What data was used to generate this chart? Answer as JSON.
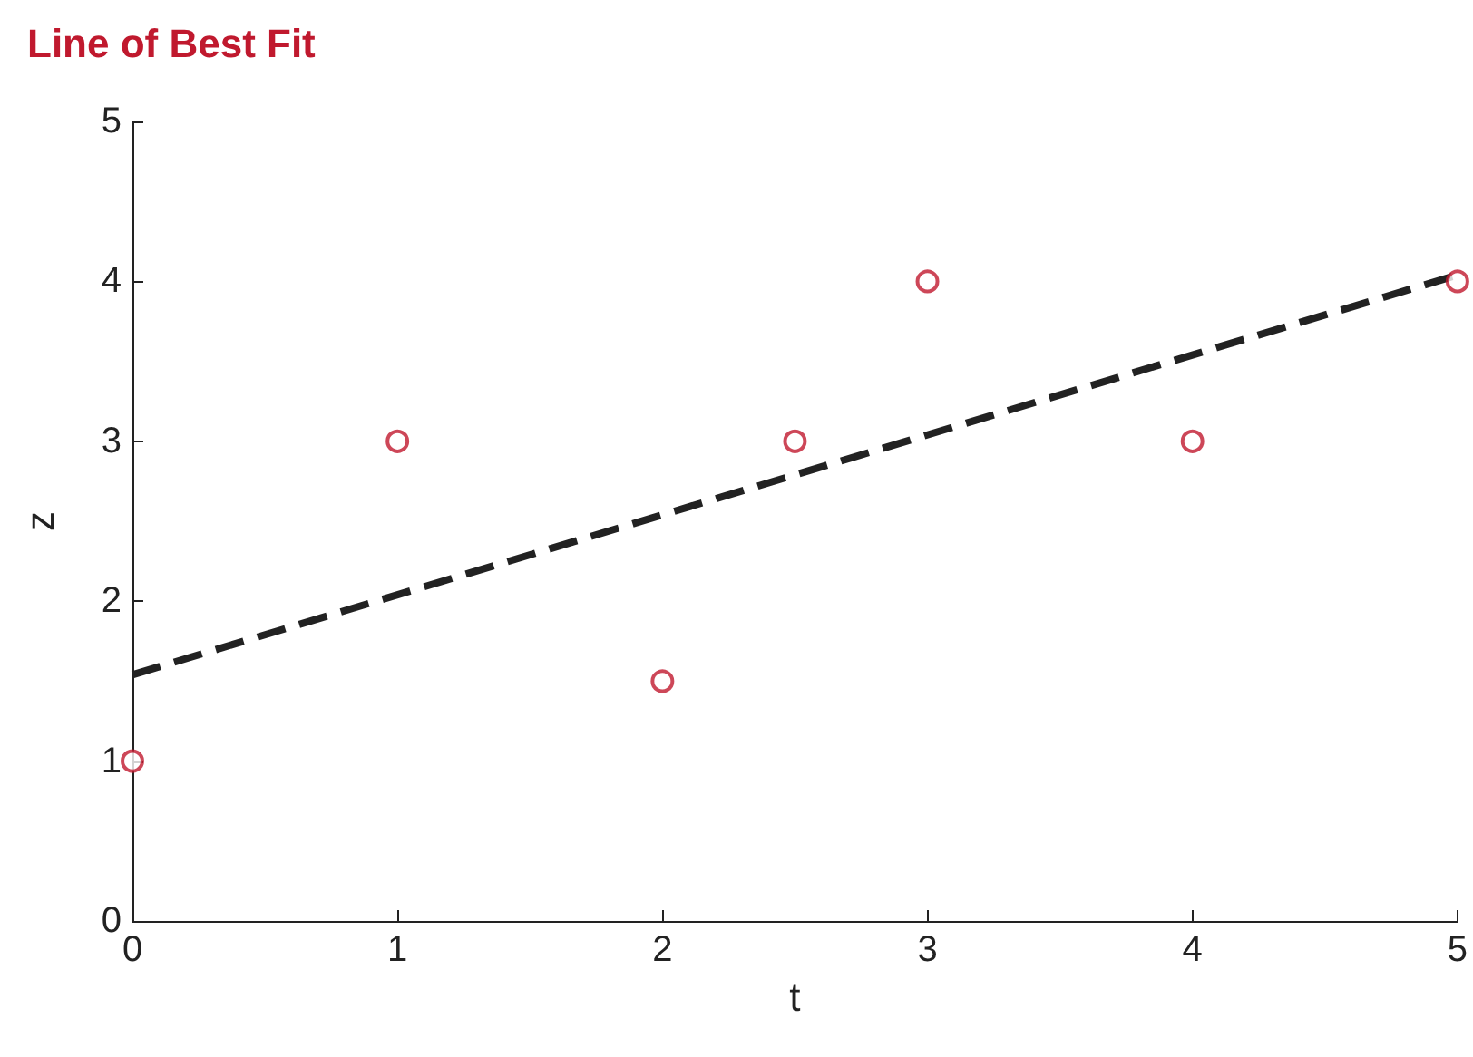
{
  "chart_data": {
    "type": "scatter",
    "title": "Line of Best Fit",
    "xlabel": "t",
    "ylabel": "z",
    "xlim": [
      0,
      5
    ],
    "xticks": [
      0,
      1,
      2,
      3,
      4,
      5
    ],
    "ylim": [
      0,
      5
    ],
    "yticks": [
      0,
      1,
      2,
      3,
      4,
      5
    ],
    "grid": false,
    "series": [
      {
        "marker": "circle",
        "color": "#c0192e",
        "x": [
          0,
          1,
          2,
          2.5,
          3,
          4,
          5
        ],
        "values": [
          1,
          3,
          1.5,
          3,
          4,
          3,
          4
        ]
      },
      {
        "type": "line",
        "marker": "none",
        "line_style": "dashed",
        "color": "#222222",
        "x": [
          0,
          5
        ],
        "values": [
          1.54,
          4.04
        ]
      }
    ]
  }
}
